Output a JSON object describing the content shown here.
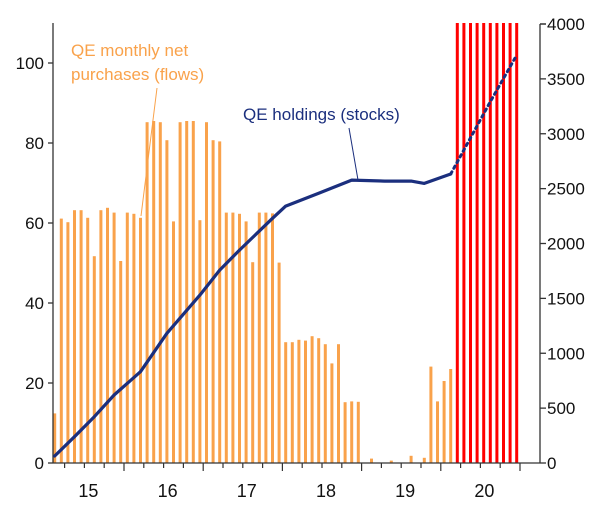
{
  "chart_data": {
    "type": "bar+line",
    "title": "",
    "xlabel": "",
    "ylabel_left": "",
    "ylabel_right": "",
    "grid": false,
    "colors": {
      "flows": "#F9A24B",
      "projected": "#FF0000",
      "stocks": "#1B2F7E",
      "axis": "#333333",
      "flows_label": "#F9A24B",
      "stocks_label": "#1B2F7E"
    },
    "left_axis": {
      "range": [
        0,
        110
      ],
      "ticks": [
        0,
        20,
        40,
        60,
        80,
        100
      ]
    },
    "right_axis": {
      "range": [
        0,
        4000
      ],
      "ticks": [
        0,
        500,
        1000,
        1500,
        2000,
        2500,
        3000,
        3500,
        4000
      ]
    },
    "x_axis": {
      "year_labels": [
        {
          "year": 2015,
          "label": "15"
        },
        {
          "year": 2016,
          "label": "16"
        },
        {
          "year": 2017,
          "label": "17"
        },
        {
          "year": 2018,
          "label": "18"
        },
        {
          "year": 2019,
          "label": "19"
        },
        {
          "year": 2020,
          "label": "20"
        }
      ]
    },
    "annotations": {
      "flows_line1": "QE monthly net",
      "flows_line2": "purchases (flows)",
      "stocks": "QE holdings (stocks)"
    },
    "flows": {
      "axis": "left",
      "start": "2015-02",
      "values": [
        12.4,
        61.1,
        60.2,
        63.2,
        63.2,
        61.3,
        51.7,
        63.2,
        63.8,
        62.6,
        50.5,
        62.6,
        62.3,
        61.3,
        85.2,
        85.5,
        85.2,
        80.7,
        60.4,
        85.2,
        85.5,
        85.5,
        60.7,
        85.2,
        80.7,
        80.4,
        62.6,
        62.6,
        62.3,
        60.4,
        50.2,
        62.6,
        62.6,
        62.4,
        50.1,
        30.2,
        30.2,
        30.8,
        30.6,
        31.7,
        31.2,
        29.7,
        24.9,
        29.7,
        15.2,
        15.4,
        15.3,
        0,
        1.1,
        0,
        0,
        0.6,
        0,
        0,
        1.8,
        0,
        1.3,
        24.1,
        15.4,
        20.5,
        23.5
      ]
    },
    "projected": {
      "axis": "left",
      "start": "2020-03",
      "count": 10,
      "off_scale": true
    },
    "stocks": {
      "axis": "right",
      "points": [
        [
          "2015-02",
          64
        ],
        [
          "2015-05",
          240
        ],
        [
          "2015-08",
          422
        ],
        [
          "2015-11",
          620
        ],
        [
          "2016-03",
          832
        ],
        [
          "2016-07",
          1182
        ],
        [
          "2016-12",
          1530
        ],
        [
          "2017-03",
          1758
        ],
        [
          "2017-06",
          1940
        ],
        [
          "2017-11",
          2230
        ],
        [
          "2018-01",
          2341
        ],
        [
          "2018-06",
          2457
        ],
        [
          "2018-11",
          2578
        ],
        [
          "2019-04",
          2569
        ],
        [
          "2019-08",
          2569
        ],
        [
          "2019-10",
          2548
        ],
        [
          "2020-02",
          2633
        ]
      ],
      "projection": [
        [
          "2020-02",
          2633
        ],
        [
          "2020-08",
          3292
        ],
        [
          "2020-12",
          3717
        ]
      ]
    }
  }
}
